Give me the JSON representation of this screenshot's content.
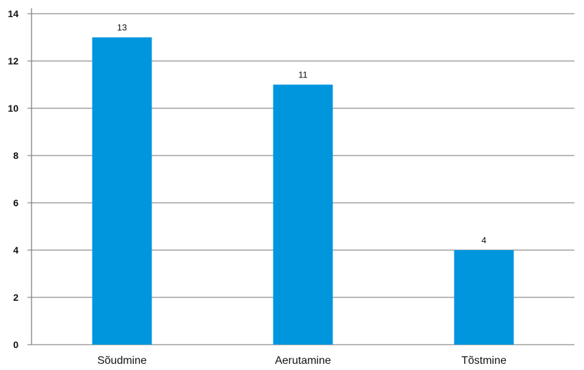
{
  "chart_data": {
    "type": "bar",
    "categories": [
      "Sõudmine",
      "Aerutamine",
      "Tõstmine"
    ],
    "values": [
      13,
      11,
      4
    ],
    "data_labels": [
      "13",
      "11",
      "4"
    ],
    "ylim": [
      0,
      14
    ],
    "yticks": [
      "0",
      "2",
      "4",
      "6",
      "8",
      "10",
      "12",
      "14"
    ],
    "grid": true,
    "bar_color": "#0096de",
    "grid_color": "#8c8c8c",
    "axis_color": "#7f7f7f"
  }
}
